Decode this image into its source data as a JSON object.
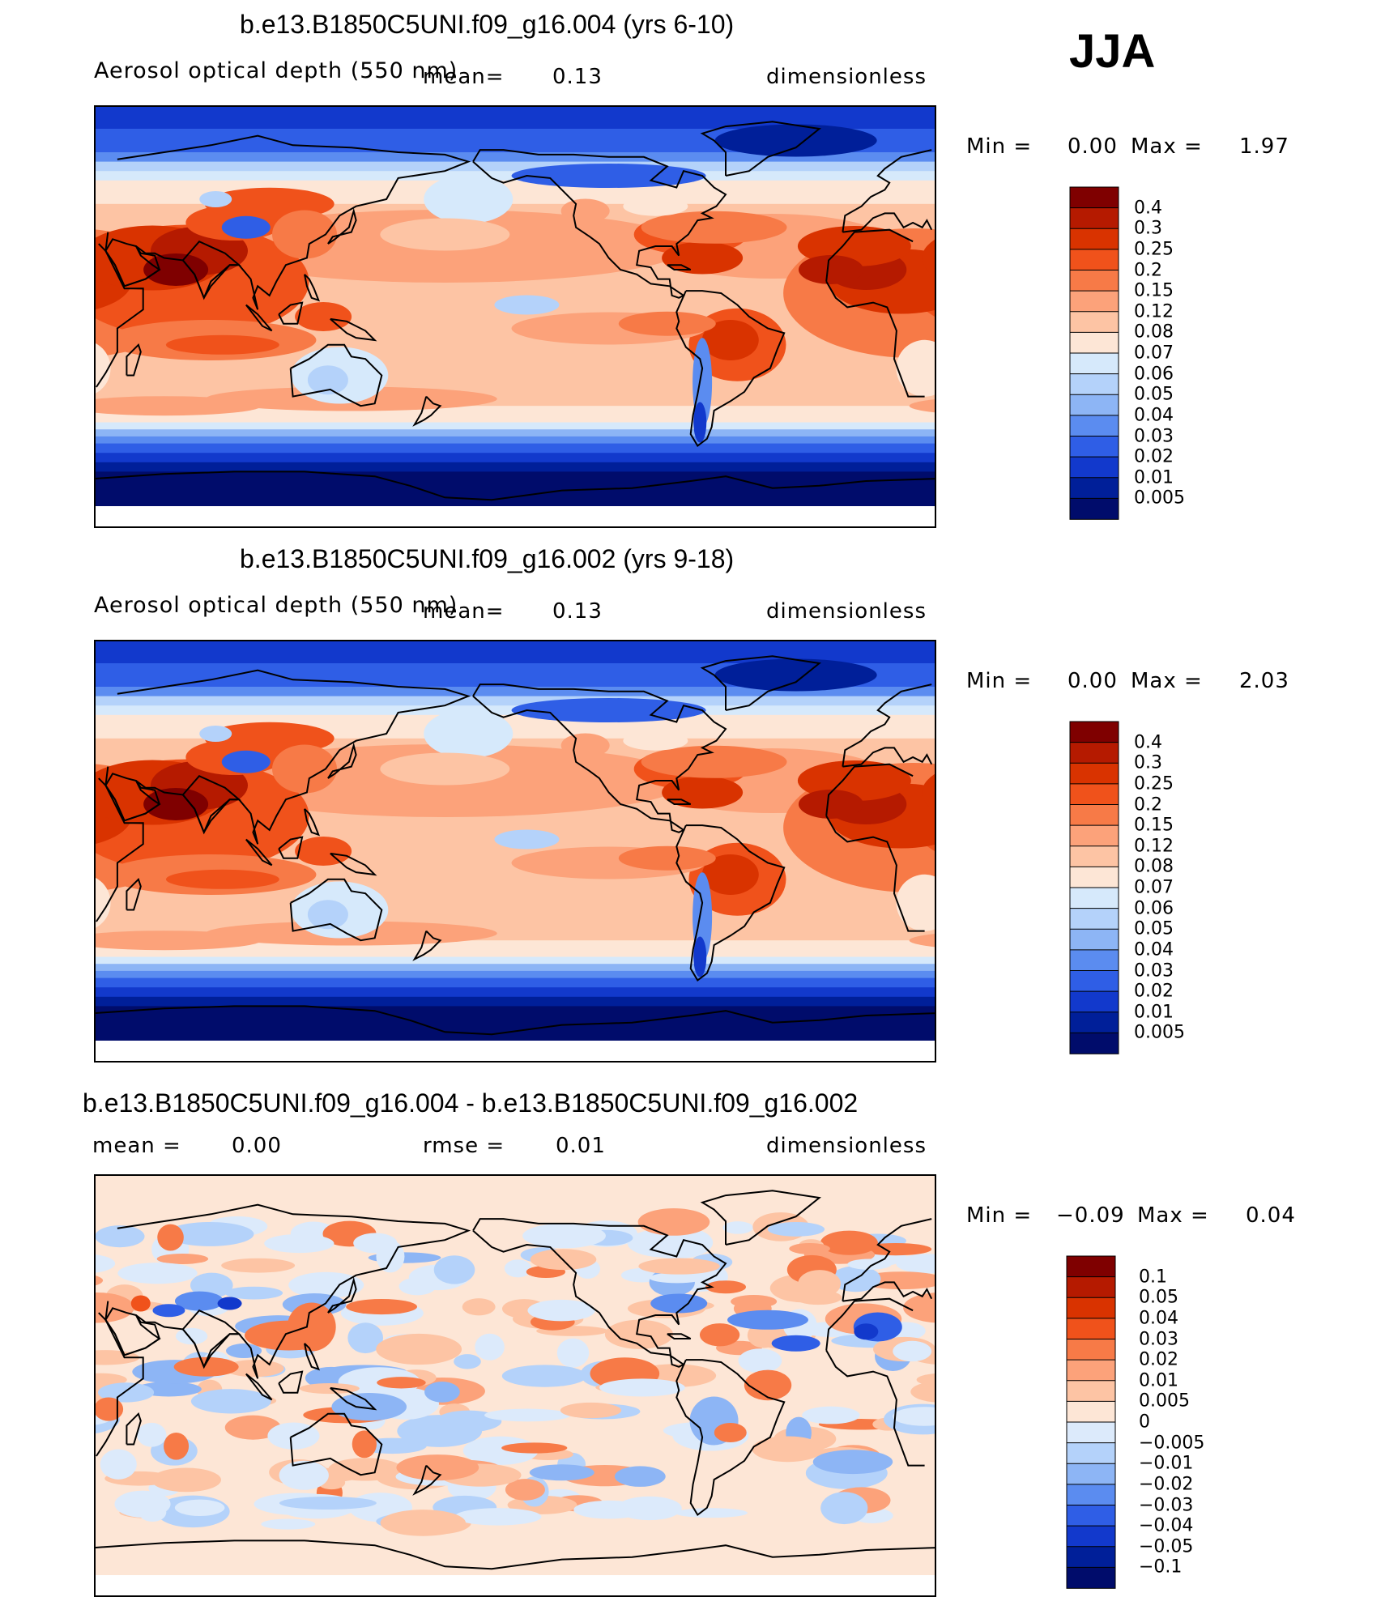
{
  "season": "JJA",
  "panels": [
    {
      "title": "b.e13.B1850C5UNI.f09_g16.004 (yrs 6-10)",
      "variable": "Aerosol optical depth (550 nm)",
      "mean_label": "mean=",
      "mean_value": "0.13",
      "units": "dimensionless",
      "min_label": "Min =",
      "min_value": "0.00",
      "max_label": "Max =",
      "max_value": "1.97",
      "levels": [
        "0.4",
        "0.3",
        "0.25",
        "0.2",
        "0.15",
        "0.12",
        "0.08",
        "0.07",
        "0.06",
        "0.05",
        "0.04",
        "0.03",
        "0.02",
        "0.01",
        "0.005"
      ],
      "colors": [
        "#7f0000",
        "#b51a00",
        "#d93300",
        "#f0521b",
        "#f77a47",
        "#fca27a",
        "#fdc4a4",
        "#fde6d6",
        "#d6e9fb",
        "#b4d2fa",
        "#8db5f5",
        "#5b8cf0",
        "#2f5ee6",
        "#1239cc",
        "#001f99",
        "#000c6b"
      ]
    },
    {
      "title": "b.e13.B1850C5UNI.f09_g16.002 (yrs 9-18)",
      "variable": "Aerosol optical depth (550 nm)",
      "mean_label": "mean=",
      "mean_value": "0.13",
      "units": "dimensionless",
      "min_label": "Min =",
      "min_value": "0.00",
      "max_label": "Max =",
      "max_value": "2.03",
      "levels": [
        "0.4",
        "0.3",
        "0.25",
        "0.2",
        "0.15",
        "0.12",
        "0.08",
        "0.07",
        "0.06",
        "0.05",
        "0.04",
        "0.03",
        "0.02",
        "0.01",
        "0.005"
      ],
      "colors": [
        "#7f0000",
        "#b51a00",
        "#d93300",
        "#f0521b",
        "#f77a47",
        "#fca27a",
        "#fdc4a4",
        "#fde6d6",
        "#d6e9fb",
        "#b4d2fa",
        "#8db5f5",
        "#5b8cf0",
        "#2f5ee6",
        "#1239cc",
        "#001f99",
        "#000c6b"
      ]
    },
    {
      "title": "b.e13.B1850C5UNI.f09_g16.004 - b.e13.B1850C5UNI.f09_g16.002",
      "mean_label": "mean =",
      "mean_value": "0.00",
      "rmse_label": "rmse =",
      "rmse_value": "0.01",
      "units": "dimensionless",
      "min_label": "Min =",
      "min_value": "−0.09",
      "max_label": "Max =",
      "max_value": "0.04",
      "levels": [
        "0.1",
        "0.05",
        "0.04",
        "0.03",
        "0.02",
        "0.01",
        "0.005",
        "0",
        "−0.005",
        "−0.01",
        "−0.02",
        "−0.03",
        "−0.04",
        "−0.05",
        "−0.1"
      ],
      "colors": [
        "#7f0000",
        "#b51a00",
        "#d93300",
        "#f0521b",
        "#f77a47",
        "#fca27a",
        "#fdc4a4",
        "#fde6d6",
        "#dceafb",
        "#b4d2fa",
        "#8db5f5",
        "#5b8cf0",
        "#2f5ee6",
        "#1239cc",
        "#001f99",
        "#000c6b"
      ]
    }
  ],
  "chart_data": [
    {
      "type": "heatmap",
      "title": "b.e13.B1850C5UNI.f09_g16.004 (yrs 6-10)",
      "variable": "Aerosol optical depth (550 nm)",
      "mean": 0.13,
      "min": 0.0,
      "max": 1.97,
      "units": "dimensionless",
      "season": "JJA",
      "contour_levels": [
        0.005,
        0.01,
        0.02,
        0.03,
        0.04,
        0.05,
        0.06,
        0.07,
        0.08,
        0.12,
        0.15,
        0.2,
        0.25,
        0.3,
        0.4
      ]
    },
    {
      "type": "heatmap",
      "title": "b.e13.B1850C5UNI.f09_g16.002 (yrs 9-18)",
      "variable": "Aerosol optical depth (550 nm)",
      "mean": 0.13,
      "min": 0.0,
      "max": 2.03,
      "units": "dimensionless",
      "season": "JJA",
      "contour_levels": [
        0.005,
        0.01,
        0.02,
        0.03,
        0.04,
        0.05,
        0.06,
        0.07,
        0.08,
        0.12,
        0.15,
        0.2,
        0.25,
        0.3,
        0.4
      ]
    },
    {
      "type": "heatmap",
      "title": "b.e13.B1850C5UNI.f09_g16.004 - b.e13.B1850C5UNI.f09_g16.002",
      "mean": 0.0,
      "rmse": 0.01,
      "min": -0.09,
      "max": 0.04,
      "units": "dimensionless",
      "season": "JJA",
      "contour_levels": [
        -0.1,
        -0.05,
        -0.04,
        -0.03,
        -0.02,
        -0.01,
        -0.005,
        0,
        0.005,
        0.01,
        0.02,
        0.03,
        0.04,
        0.05,
        0.1
      ]
    }
  ]
}
